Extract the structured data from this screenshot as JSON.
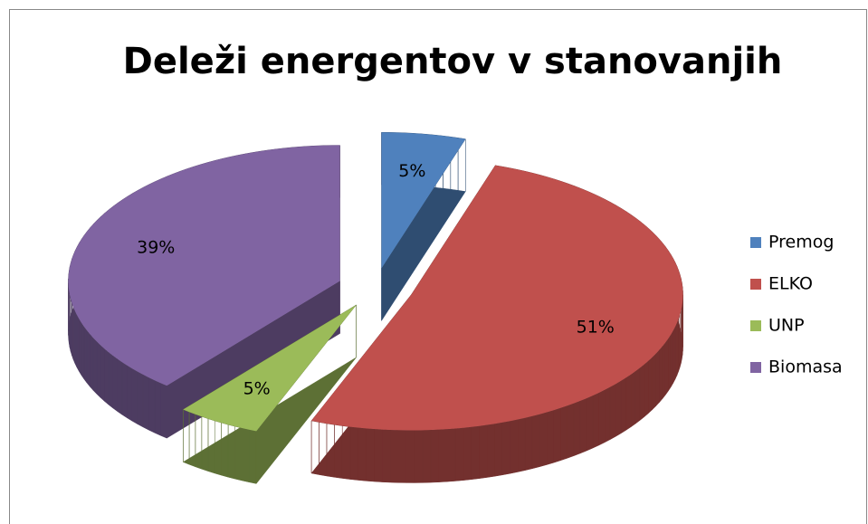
{
  "chart_data": {
    "type": "pie",
    "title": "Deleži energentov v stanovanjih",
    "categories": [
      "Premog",
      "ELKO",
      "UNP",
      "Biomasa"
    ],
    "values": [
      5,
      51,
      5,
      39
    ],
    "value_labels": [
      "5%",
      "51%",
      "5%",
      "39%"
    ],
    "colors": [
      "#4f81bd",
      "#c0504d",
      "#9bbb59",
      "#8064a2"
    ],
    "legend": "right"
  }
}
